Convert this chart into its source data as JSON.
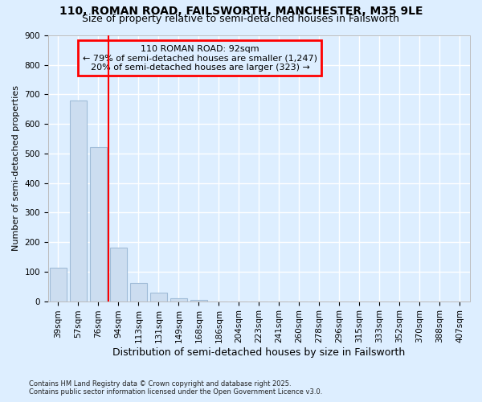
{
  "title1": "110, ROMAN ROAD, FAILSWORTH, MANCHESTER, M35 9LE",
  "title2": "Size of property relative to semi-detached houses in Failsworth",
  "xlabel": "Distribution of semi-detached houses by size in Failsworth",
  "ylabel": "Number of semi-detached properties",
  "categories": [
    "39sqm",
    "57sqm",
    "76sqm",
    "94sqm",
    "113sqm",
    "131sqm",
    "149sqm",
    "168sqm",
    "186sqm",
    "204sqm",
    "223sqm",
    "241sqm",
    "260sqm",
    "278sqm",
    "296sqm",
    "315sqm",
    "333sqm",
    "352sqm",
    "370sqm",
    "388sqm",
    "407sqm"
  ],
  "values": [
    112,
    680,
    522,
    182,
    62,
    28,
    10,
    5,
    0,
    0,
    0,
    0,
    0,
    0,
    0,
    0,
    0,
    0,
    0,
    0,
    0
  ],
  "bar_color": "#ccddf0",
  "bar_edge_color": "#a0bcd8",
  "highlight_line_index": 3,
  "highlight_label": "110 ROMAN ROAD: 92sqm",
  "annotation_line1": "← 79% of semi-detached houses are smaller (1,247)",
  "annotation_line2": "20% of semi-detached houses are larger (323) →",
  "box_edge_color": "red",
  "background_color": "#ddeeff",
  "grid_color": "white",
  "ylim": [
    0,
    900
  ],
  "yticks": [
    0,
    100,
    200,
    300,
    400,
    500,
    600,
    700,
    800,
    900
  ],
  "footnote1": "Contains HM Land Registry data © Crown copyright and database right 2025.",
  "footnote2": "Contains public sector information licensed under the Open Government Licence v3.0.",
  "title1_fontsize": 10,
  "title2_fontsize": 9,
  "xlabel_fontsize": 9,
  "ylabel_fontsize": 8,
  "tick_fontsize": 7.5,
  "annot_fontsize": 8,
  "footnote_fontsize": 6
}
